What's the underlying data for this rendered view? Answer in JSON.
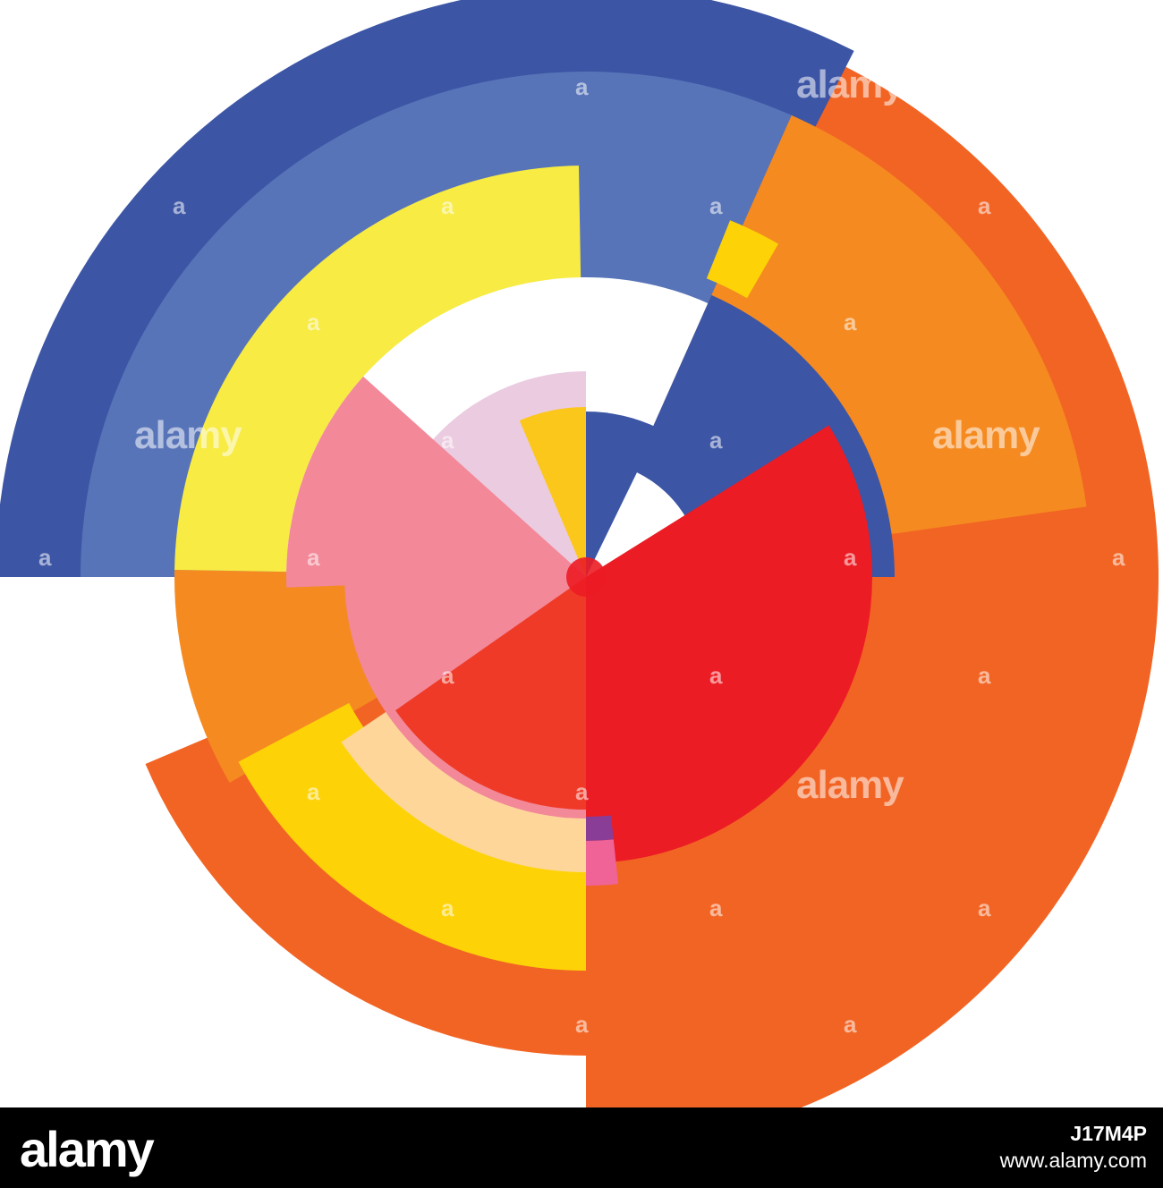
{
  "watermark": {
    "word": "alamy",
    "letter": "a"
  },
  "footer": {
    "logo": "alamy",
    "image_id": "J17M4P",
    "url": "www.alamy.com"
  },
  "palette": {
    "blue_dark": "#3c55a5",
    "blue_light": "#5874b8",
    "orange_dark": "#f26424",
    "orange_light": "#f58a20",
    "yellow": "#f7eb44",
    "yellow_gold": "#fdd307",
    "yellow_mustard": "#fcc71b",
    "red": "#ec1c24",
    "red_orange": "#ef3a28",
    "pink": "#f28898",
    "pink_light": "#ebcbe0",
    "pink_hot": "#ef6397",
    "peach": "#fed69a",
    "purple": "#8a3d96",
    "white": "#ffffff",
    "footer_bg": "#000000"
  }
}
